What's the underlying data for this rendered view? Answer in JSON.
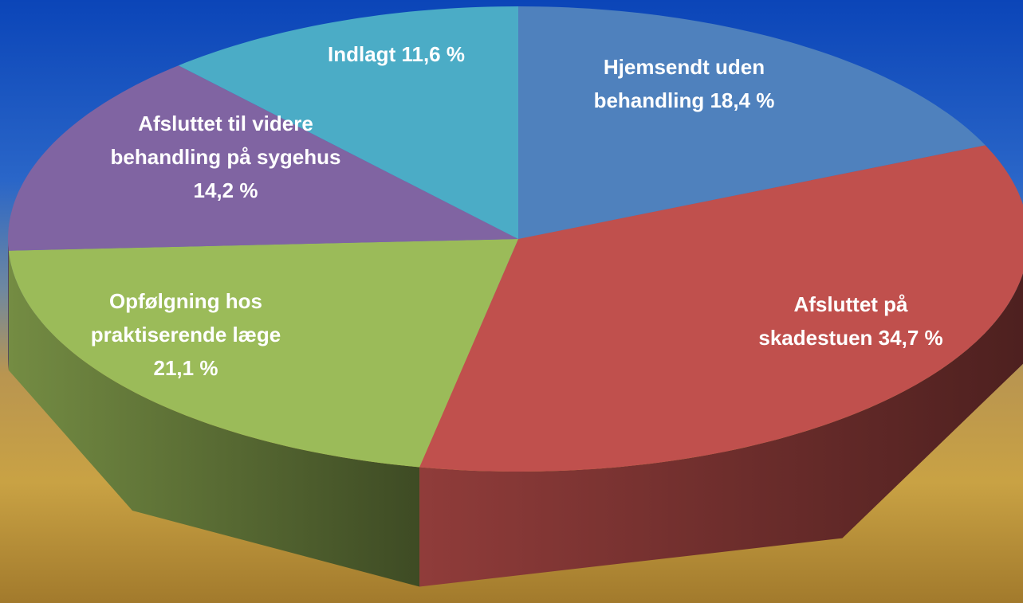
{
  "chart_data": {
    "type": "pie3d",
    "categories": [
      "Hjemsendt uden behandling",
      "Afsluttet på skadestuen",
      "Opfølgning hos praktiserende læge",
      "Afsluttet til videre behandling på sygehus",
      "Indlagt"
    ],
    "values": [
      18.4,
      34.7,
      21.1,
      14.2,
      11.6
    ],
    "value_labels": [
      "18,4 %",
      "34,7 %",
      "21,1 %",
      "14,2 %",
      "11,6 %"
    ],
    "colors": [
      "#4f81bd",
      "#c0504d",
      "#9bbb59",
      "#8064a2",
      "#4bacc6"
    ]
  }
}
